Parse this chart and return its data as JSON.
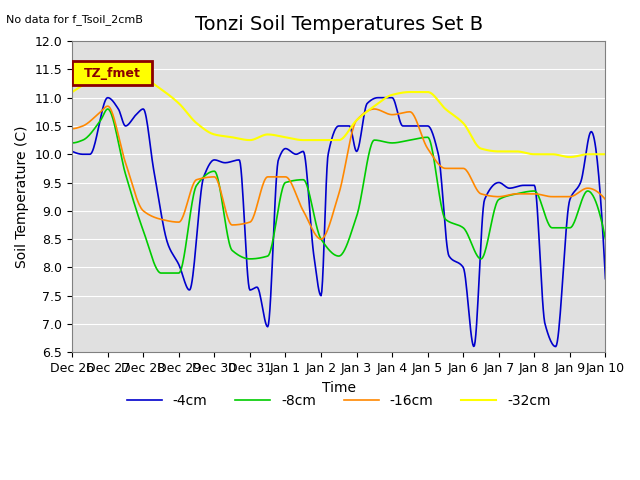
{
  "title": "Tonzi Soil Temperatures Set B",
  "xlabel": "Time",
  "ylabel": "Soil Temperature (C)",
  "no_data_text": "No data for f_Tsoil_2cmB",
  "legend_box_text": "TZ_fmet",
  "ylim": [
    6.5,
    12.0
  ],
  "yticks": [
    6.5,
    7.0,
    7.5,
    8.0,
    8.5,
    9.0,
    9.5,
    10.0,
    10.5,
    11.0,
    11.5,
    12.0
  ],
  "xtick_labels": [
    "Dec 26",
    "Dec 27",
    "Dec 28",
    "Dec 29",
    "Dec 30",
    "Dec 31",
    "Jan 1",
    "Jan 2",
    "Jan 3",
    "Jan 4",
    "Jan 5",
    "Jan 6",
    "Jan 7",
    "Jan 8",
    "Jan 9",
    "Jan 10"
  ],
  "line_colors": [
    "#0000cc",
    "#00cc00",
    "#ff8800",
    "#ffff00"
  ],
  "line_labels": [
    "-4cm",
    "-8cm",
    "-16cm",
    "-32cm"
  ],
  "background_color": "#e8e8e8",
  "plot_bg_color": "#e0e0e0",
  "title_fontsize": 14,
  "axis_fontsize": 10,
  "tick_fontsize": 9
}
